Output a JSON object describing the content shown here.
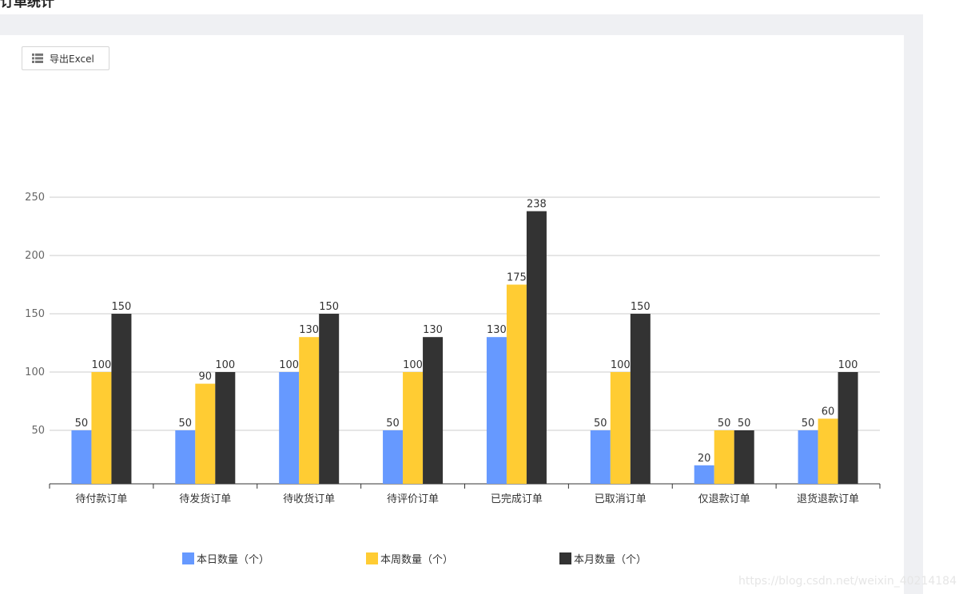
{
  "page": {
    "title": "订单统计"
  },
  "toolbar": {
    "export_label": "导出Excel",
    "export_icon": "list-icon"
  },
  "chart_data": {
    "type": "bar",
    "categories": [
      "待付款订单",
      "待发货订单",
      "待收货订单",
      "待评价订单",
      "已完成订单",
      "已取消订单",
      "仅退款订单",
      "退货退款订单"
    ],
    "series": [
      {
        "name": "本日数量（个）",
        "color": "#6699ff",
        "values": [
          50,
          50,
          100,
          50,
          130,
          50,
          20,
          50
        ]
      },
      {
        "name": "本周数量（个）",
        "color": "#ffcc33",
        "values": [
          100,
          90,
          130,
          100,
          175,
          100,
          50,
          60
        ]
      },
      {
        "name": "本月数量（个）",
        "color": "#333333",
        "values": [
          150,
          100,
          150,
          130,
          238,
          150,
          50,
          100
        ]
      }
    ],
    "y_ticks": [
      50,
      100,
      150,
      200,
      250
    ],
    "grid": true,
    "legend_position": "bottom"
  },
  "watermark": "https://blog.csdn.net/weixin_40214184"
}
